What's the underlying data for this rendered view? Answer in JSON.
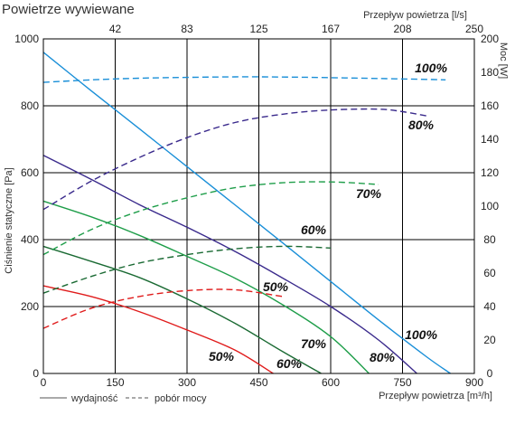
{
  "title": "Powietrze wywiewane",
  "chart_data": {
    "type": "line",
    "title": "Powietrze wywiewane",
    "xlabel": "Przepływ powietrza [m³/h]",
    "x2label": "Przepływ powietrza [l/s]",
    "ylabel": "Ciśnienie statyczne [Pa]",
    "y2label": "Moc [W]",
    "xlim": [
      0,
      900
    ],
    "ylim": [
      0,
      1000
    ],
    "y2lim": [
      0,
      200
    ],
    "x_ticks": [
      0,
      150,
      300,
      450,
      600,
      750,
      900
    ],
    "y_ticks": [
      0,
      200,
      400,
      600,
      800,
      1000
    ],
    "x2_ticks": [
      "42",
      "83",
      "125",
      "167",
      "208",
      "250"
    ],
    "y2_ticks": [
      0,
      20,
      40,
      60,
      80,
      100,
      120,
      140,
      160,
      180,
      200
    ],
    "grid": true,
    "legend": [
      {
        "label": "wydajność",
        "style": "solid"
      },
      {
        "label": "pobór mocy",
        "style": "dashed"
      }
    ],
    "series": [
      {
        "name": "100%",
        "kind": "pressure",
        "color": "#1a8fd8",
        "axis": "left",
        "x": [
          0,
          100,
          200,
          300,
          400,
          500,
          600,
          700,
          800,
          850
        ],
        "y": [
          960,
          845,
          732,
          618,
          504,
          390,
          275,
          160,
          50,
          0
        ]
      },
      {
        "name": "80%",
        "kind": "pressure",
        "color": "#3a2a8c",
        "axis": "left",
        "x": [
          0,
          100,
          200,
          300,
          400,
          500,
          600,
          700,
          780
        ],
        "y": [
          652,
          580,
          505,
          437,
          365,
          285,
          200,
          100,
          0
        ]
      },
      {
        "name": "70%",
        "kind": "pressure",
        "color": "#1f9e4a",
        "axis": "left",
        "x": [
          0,
          100,
          200,
          300,
          400,
          500,
          600,
          680
        ],
        "y": [
          515,
          468,
          413,
          350,
          285,
          205,
          110,
          0
        ]
      },
      {
        "name": "60%",
        "kind": "pressure",
        "color": "#1a6a33",
        "axis": "left",
        "x": [
          0,
          100,
          200,
          300,
          400,
          500,
          580
        ],
        "y": [
          380,
          335,
          287,
          223,
          150,
          65,
          0
        ]
      },
      {
        "name": "50%",
        "kind": "pressure",
        "color": "#e01b1b",
        "axis": "left",
        "x": [
          0,
          100,
          200,
          300,
          400,
          480
        ],
        "y": [
          262,
          230,
          185,
          130,
          70,
          0
        ]
      },
      {
        "name": "100%",
        "kind": "power",
        "color": "#1a8fd8",
        "axis": "right",
        "x": [
          0,
          100,
          200,
          300,
          400,
          500,
          600,
          700,
          800,
          840
        ],
        "y": [
          174,
          175.5,
          176.5,
          177,
          177.3,
          177.2,
          176.8,
          176.3,
          175.8,
          175.5
        ]
      },
      {
        "name": "80%",
        "kind": "power",
        "color": "#3a2a8c",
        "axis": "right",
        "x": [
          0,
          100,
          200,
          300,
          400,
          500,
          600,
          700,
          750,
          800
        ],
        "y": [
          98,
          115,
          129,
          141,
          150,
          155,
          157.5,
          158,
          156.5,
          154
        ]
      },
      {
        "name": "70%",
        "kind": "power",
        "color": "#1f9e4a",
        "axis": "right",
        "x": [
          0,
          100,
          200,
          300,
          400,
          500,
          600,
          700
        ],
        "y": [
          71,
          86,
          97,
          105,
          111,
          114,
          114.5,
          113
        ]
      },
      {
        "name": "60%",
        "kind": "power",
        "color": "#1a6a33",
        "axis": "right",
        "x": [
          0,
          100,
          200,
          300,
          400,
          500,
          600
        ],
        "y": [
          48,
          58,
          66,
          71,
          74.5,
          76,
          75
        ]
      },
      {
        "name": "50%",
        "kind": "power",
        "color": "#e01b1b",
        "axis": "right",
        "x": [
          0,
          100,
          200,
          300,
          400,
          500
        ],
        "y": [
          27,
          39,
          46,
          49.5,
          50,
          46
        ]
      }
    ]
  }
}
